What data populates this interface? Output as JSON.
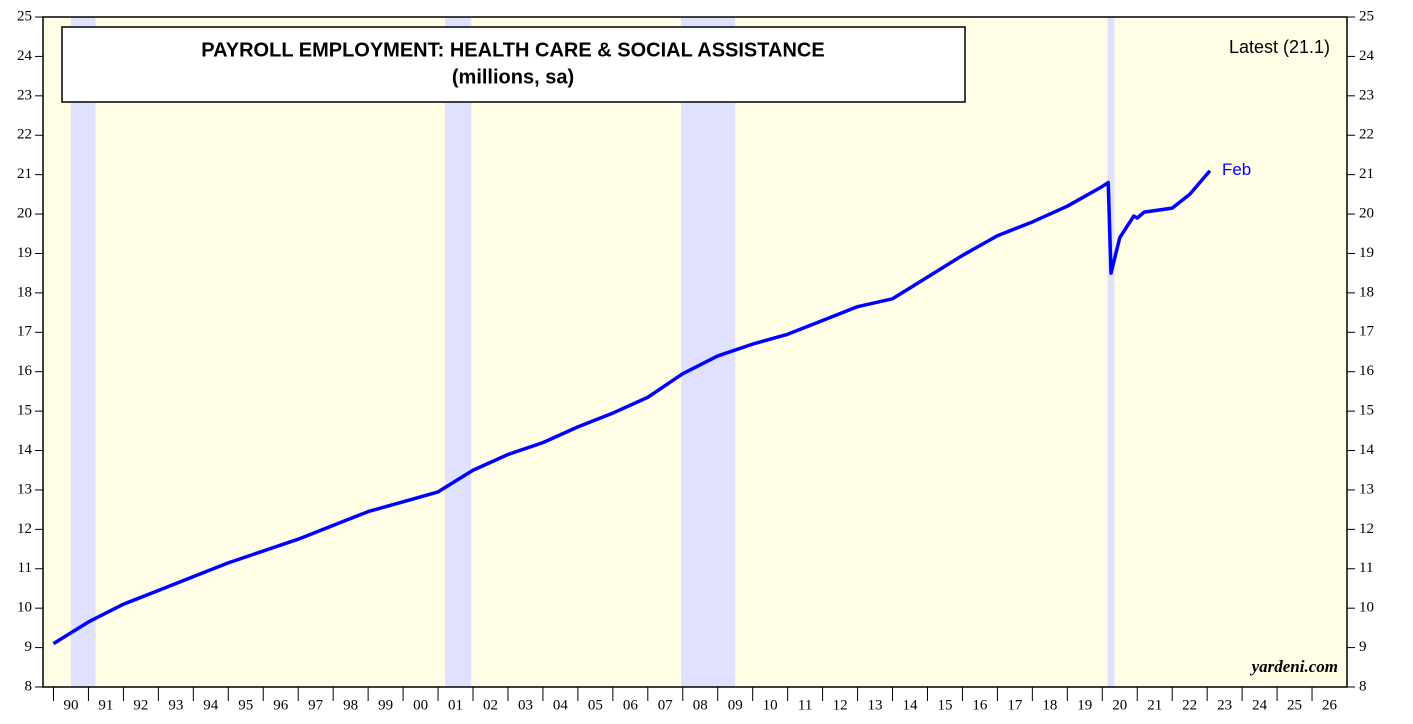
{
  "chart_data": {
    "type": "line",
    "title": "PAYROLL EMPLOYMENT: HEALTH CARE & SOCIAL ASSISTANCE",
    "subtitle": "(millions, sa)",
    "annotations": {
      "latest": "Latest (21.1)",
      "end_label": "Feb",
      "source": "yardeni.com"
    },
    "series": [
      {
        "name": "Health care & social assistance",
        "color": "#0000ff",
        "x": [
          1990.0,
          1991.0,
          1992.0,
          1993.0,
          1994.0,
          1995.0,
          1996.0,
          1997.0,
          1998.0,
          1999.0,
          2000.0,
          2001.0,
          2002.0,
          2003.0,
          2004.0,
          2005.0,
          2006.0,
          2007.0,
          2008.0,
          2009.0,
          2010.0,
          2011.0,
          2012.0,
          2013.0,
          2014.0,
          2015.0,
          2016.0,
          2017.0,
          2018.0,
          2019.0,
          2020.0,
          2020.17,
          2020.25,
          2020.5,
          2020.9,
          2021.0,
          2021.2,
          2022.0,
          2022.5,
          2023.08
        ],
        "values": [
          9.1,
          9.65,
          10.1,
          10.45,
          10.8,
          11.15,
          11.45,
          11.75,
          12.1,
          12.45,
          12.7,
          12.95,
          13.5,
          13.9,
          14.2,
          14.6,
          14.95,
          15.35,
          15.95,
          16.4,
          16.7,
          16.95,
          17.3,
          17.65,
          17.85,
          18.4,
          18.95,
          19.45,
          19.8,
          20.2,
          20.7,
          20.8,
          18.5,
          19.4,
          19.95,
          19.9,
          20.05,
          20.15,
          20.5,
          21.1
        ]
      }
    ],
    "recessions": [
      [
        1990.5,
        1991.2
      ],
      [
        2001.2,
        2001.95
      ],
      [
        2007.95,
        2009.5
      ],
      [
        2020.15,
        2020.35
      ]
    ],
    "recession_color": "#e0e0ff",
    "background_color": "#fffde6",
    "xlim": [
      1989.7,
      2027.0
    ],
    "xticks": [
      {
        "value": 1990,
        "label": "90"
      },
      {
        "value": 1991,
        "label": "91"
      },
      {
        "value": 1992,
        "label": "92"
      },
      {
        "value": 1993,
        "label": "93"
      },
      {
        "value": 1994,
        "label": "94"
      },
      {
        "value": 1995,
        "label": "95"
      },
      {
        "value": 1996,
        "label": "96"
      },
      {
        "value": 1997,
        "label": "97"
      },
      {
        "value": 1998,
        "label": "98"
      },
      {
        "value": 1999,
        "label": "99"
      },
      {
        "value": 2000,
        "label": "00"
      },
      {
        "value": 2001,
        "label": "01"
      },
      {
        "value": 2002,
        "label": "02"
      },
      {
        "value": 2003,
        "label": "03"
      },
      {
        "value": 2004,
        "label": "04"
      },
      {
        "value": 2005,
        "label": "05"
      },
      {
        "value": 2006,
        "label": "06"
      },
      {
        "value": 2007,
        "label": "07"
      },
      {
        "value": 2008,
        "label": "08"
      },
      {
        "value": 2009,
        "label": "09"
      },
      {
        "value": 2010,
        "label": "10"
      },
      {
        "value": 2011,
        "label": "11"
      },
      {
        "value": 2012,
        "label": "12"
      },
      {
        "value": 2013,
        "label": "13"
      },
      {
        "value": 2014,
        "label": "14"
      },
      {
        "value": 2015,
        "label": "15"
      },
      {
        "value": 2016,
        "label": "16"
      },
      {
        "value": 2017,
        "label": "17"
      },
      {
        "value": 2018,
        "label": "18"
      },
      {
        "value": 2019,
        "label": "19"
      },
      {
        "value": 2020,
        "label": "20"
      },
      {
        "value": 2021,
        "label": "21"
      },
      {
        "value": 2022,
        "label": "22"
      },
      {
        "value": 2023,
        "label": "23"
      },
      {
        "value": 2024,
        "label": "24"
      },
      {
        "value": 2025,
        "label": "25"
      },
      {
        "value": 2026,
        "label": "26"
      }
    ],
    "ylim": [
      8,
      25
    ],
    "yticks": [
      8,
      9,
      10,
      11,
      12,
      13,
      14,
      15,
      16,
      17,
      18,
      19,
      20,
      21,
      22,
      23,
      24,
      25
    ]
  }
}
